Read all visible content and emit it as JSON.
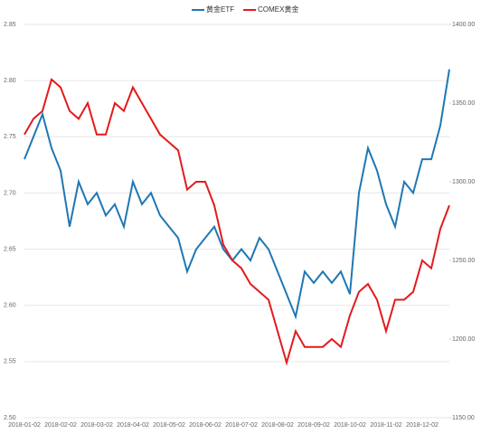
{
  "chart_data": {
    "type": "line",
    "categories": [
      "2018-01-02",
      null,
      null,
      null,
      "2018-02-02",
      null,
      null,
      null,
      "2018-03-02",
      null,
      null,
      null,
      "2018-04-02",
      null,
      null,
      null,
      "2018-05-02",
      null,
      null,
      null,
      "2018-06-02",
      null,
      null,
      null,
      "2018-07-02",
      null,
      null,
      null,
      "2018-08-02",
      null,
      null,
      null,
      "2018-09-02",
      null,
      null,
      null,
      "2018-10-02",
      null,
      null,
      null,
      "2018-11-02",
      null,
      null,
      null,
      "2018-12-02",
      null,
      null,
      null
    ],
    "series": [
      {
        "name": "黄金ETF",
        "color": "#1f77b4",
        "values": [
          2.73,
          2.75,
          2.77,
          2.74,
          2.72,
          2.67,
          2.71,
          2.69,
          2.7,
          2.68,
          2.69,
          2.67,
          2.71,
          2.69,
          2.7,
          2.68,
          2.67,
          2.66,
          2.63,
          2.65,
          2.66,
          2.67,
          2.65,
          2.64,
          2.65,
          2.64,
          2.66,
          2.65,
          2.63,
          2.61,
          2.59,
          2.63,
          2.62,
          2.63,
          2.62,
          2.63,
          2.61,
          2.7,
          2.74,
          2.72,
          2.69,
          2.67,
          2.71,
          2.7,
          2.73,
          2.73,
          2.76,
          2.81
        ]
      },
      {
        "name": "COMEX黄金",
        "color": "#e31a1c",
        "axis": "y2",
        "values": [
          1330,
          1340,
          1345,
          1365,
          1360,
          1345,
          1340,
          1350,
          1330,
          1330,
          1350,
          1345,
          1360,
          1350,
          1340,
          1330,
          1325,
          1320,
          1295,
          1300,
          1300,
          1285,
          1260,
          1250,
          1245,
          1235,
          1230,
          1225,
          1205,
          1185,
          1205,
          1195,
          1195,
          1195,
          1200,
          1195,
          1215,
          1230,
          1235,
          1225,
          1205,
          1225,
          1225,
          1230,
          1250,
          1245,
          1270,
          1285
        ]
      }
    ],
    "ylim": [
      2.5,
      2.85
    ],
    "yticks": [
      {
        "value": 2.5,
        "label": "2.50"
      },
      2.55,
      {
        "value": 2.6,
        "label": "2.60"
      },
      2.65,
      {
        "value": 2.7,
        "label": "2.70"
      },
      2.75,
      {
        "value": 2.8,
        "label": "2.80"
      },
      2.85
    ],
    "y2lim": [
      1150,
      1400
    ],
    "y2ticks": [
      {
        "value": 1150,
        "label": "1150.00"
      },
      {
        "value": 1200,
        "label": "1200.00"
      },
      {
        "value": 1250,
        "label": "1250.00"
      },
      {
        "value": 1300,
        "label": "1300.00"
      },
      {
        "value": 1350,
        "label": "1350.00"
      },
      {
        "value": 1400,
        "label": "1400.00"
      }
    ],
    "grid": true
  }
}
